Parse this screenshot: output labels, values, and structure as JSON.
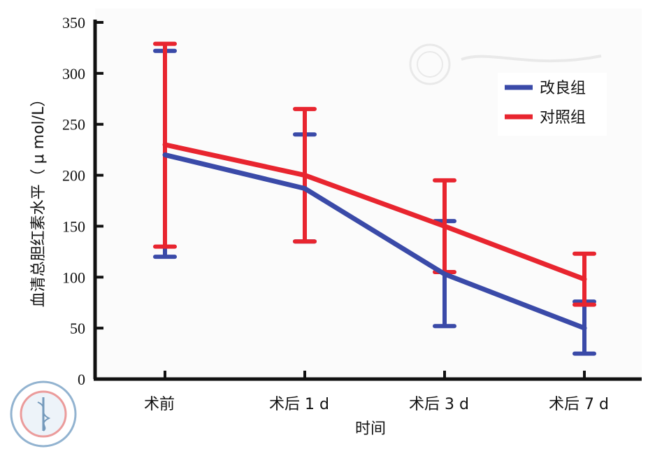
{
  "chart_data": {
    "type": "line",
    "categories": [
      "术前",
      "术后 1 d",
      "术后 3 d",
      "术后 7 d"
    ],
    "xlabel": "时间",
    "ylabel": "血清总胆红素水平（ μ mol/L）",
    "ylim": [
      0,
      350
    ],
    "yticks": [
      0,
      50,
      100,
      150,
      200,
      250,
      300,
      350
    ],
    "grid": false,
    "legend_position": "top-right",
    "series": [
      {
        "name": "改良组",
        "color": "#3a4aa8",
        "values": [
          220,
          187,
          103,
          50
        ],
        "error_low": [
          120,
          135,
          52,
          25
        ],
        "error_high": [
          322,
          240,
          155,
          76
        ]
      },
      {
        "name": "对照组",
        "color": "#e8252f",
        "values": [
          230,
          200,
          150,
          98
        ],
        "error_low": [
          130,
          135,
          105,
          73
        ],
        "error_high": [
          329,
          265,
          195,
          123
        ]
      }
    ]
  }
}
